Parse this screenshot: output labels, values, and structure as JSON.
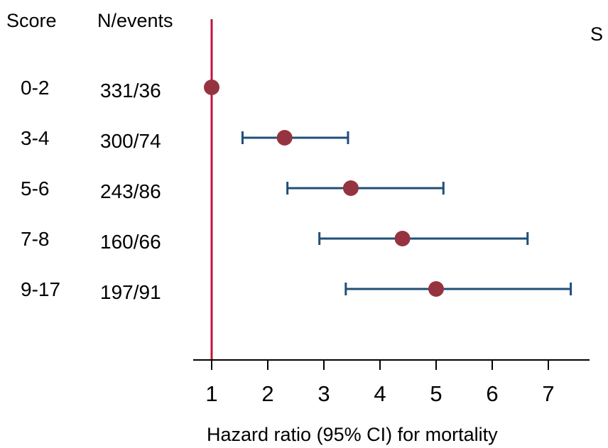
{
  "chart_data": {
    "type": "forest",
    "columns": {
      "score_header": "Score",
      "events_header": "N/events"
    },
    "rows": [
      {
        "score": "0-2",
        "n_events": "331/36",
        "hr": 1.0,
        "ci_low": null,
        "ci_high": null
      },
      {
        "score": "3-4",
        "n_events": "300/74",
        "hr": 2.3,
        "ci_low": 1.55,
        "ci_high": 3.43
      },
      {
        "score": "5-6",
        "n_events": "243/86",
        "hr": 3.48,
        "ci_low": 2.35,
        "ci_high": 5.13
      },
      {
        "score": "7-8",
        "n_events": "160/66",
        "hr": 4.4,
        "ci_low": 2.92,
        "ci_high": 6.63
      },
      {
        "score": "9-17",
        "n_events": "197/91",
        "hr": 5.0,
        "ci_low": 3.39,
        "ci_high": 7.4
      }
    ],
    "xlabel": "Hazard ratio (95% CI) for mortality",
    "x_ticks": [
      1,
      2,
      3,
      4,
      5,
      6,
      7
    ],
    "xlim": [
      0.7,
      7.7
    ],
    "reference_line": 1,
    "colors": {
      "point": "#953440",
      "ci": "#1f4e79",
      "reference": "#c0143c",
      "axis": "#000000"
    },
    "partial_label": "S"
  }
}
